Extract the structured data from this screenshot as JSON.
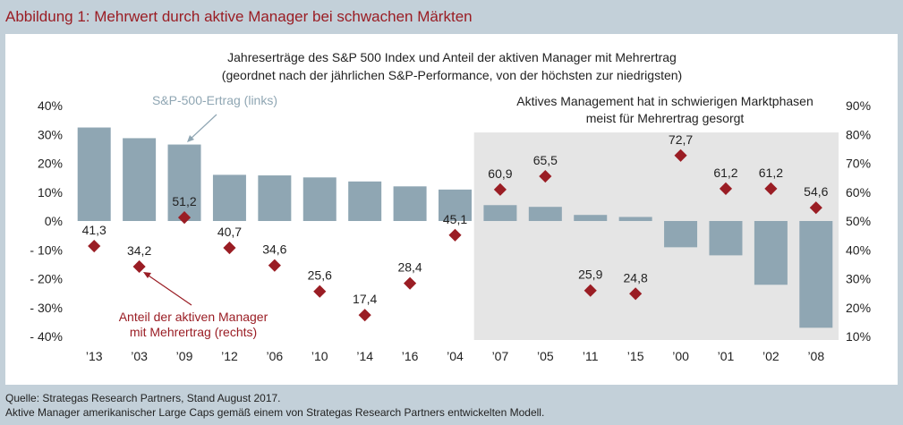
{
  "figure_title": "Abbildung 1: Mehrwert durch aktive Manager bei schwachen Märkten",
  "colors": {
    "background": "#c3d0d9",
    "bar": "#8fa6b3",
    "marker": "#9a1d24",
    "shade": "#e5e5e5",
    "title_red": "#9a1d24",
    "callout_grey": "#8fa6b3"
  },
  "chart_data": {
    "type": "bar",
    "title_lines": [
      "Jahreserträge des S&P 500 Index und Anteil der aktiven Manager mit Mehrertrag",
      "(geordnet nach der jährlichen S&P-Performance, von der höchsten zur niedrigsten)"
    ],
    "categories": [
      "’13",
      "’03",
      "’09",
      "’12",
      "’06",
      "’10",
      "’14",
      "’16",
      "’04",
      "’07",
      "’05",
      "’11",
      "’15",
      "’00",
      "’01",
      "’02",
      "’08"
    ],
    "series": [
      {
        "name": "S&P-500-Ertrag (links)",
        "axis": "left",
        "type": "bar",
        "values": [
          32.4,
          28.7,
          26.5,
          16.0,
          15.8,
          15.1,
          13.7,
          12.0,
          10.9,
          5.5,
          4.9,
          2.1,
          1.4,
          -9.1,
          -11.9,
          -22.1,
          -37.0
        ]
      },
      {
        "name": "Anteil der aktiven Manager mit Mehrertrag (rechts)",
        "axis": "right",
        "type": "scatter",
        "values": [
          41.3,
          34.2,
          51.2,
          40.7,
          34.6,
          25.6,
          17.4,
          28.4,
          45.1,
          60.9,
          65.5,
          25.9,
          24.8,
          72.7,
          61.2,
          61.2,
          54.6
        ],
        "labels": [
          "41,3",
          "34,2",
          "51,2",
          "40,7",
          "34,6",
          "25,6",
          "17,4",
          "28,4",
          "45,1",
          "60,9",
          "65,5",
          "25,9",
          "24,8",
          "72,7",
          "61,2",
          "61,2",
          "54,6"
        ]
      }
    ],
    "y_left": {
      "min": -40,
      "max": 40,
      "step": 10,
      "tick_labels": [
        "40%",
        "30%",
        "20%",
        "10%",
        "0%",
        "- 10%",
        "- 20%",
        "- 30%",
        "- 40%"
      ]
    },
    "y_right": {
      "min": 10,
      "max": 90,
      "step": 10,
      "tick_labels": [
        "90%",
        "80%",
        "70%",
        "60%",
        "50%",
        "40%",
        "30%",
        "20%",
        "10%"
      ]
    },
    "shaded_region": {
      "from_category": "’07",
      "to_category": "’08"
    },
    "annotations": {
      "shaded_caption": [
        "Aktives Management hat in schwierigen Marktphasen",
        "meist für Mehrertrag gesorgt"
      ],
      "bar_callout": "S&P-500-Ertrag (links)",
      "marker_callout": [
        "Anteil der aktiven Manager",
        "mit Mehrertrag (rechts)"
      ]
    }
  },
  "source_lines": [
    "Quelle: Strategas Research Partners, Stand August 2017.",
    "Aktive Manager amerikanischer Large Caps gemäß einem von Strategas Research Partners entwickelten Modell."
  ]
}
